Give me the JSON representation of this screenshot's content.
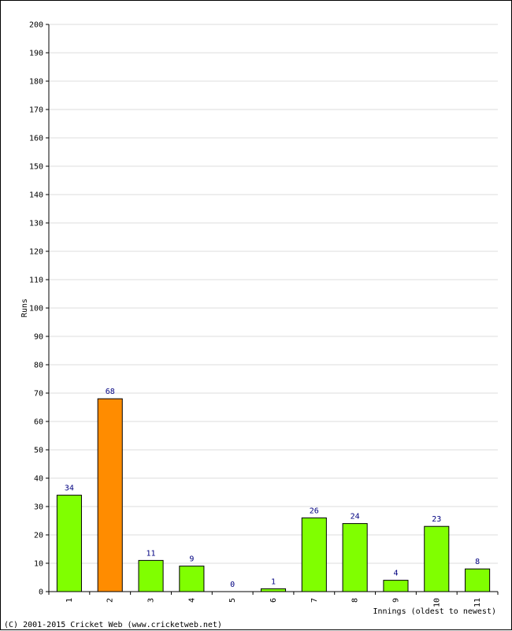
{
  "chart_data": {
    "type": "bar",
    "title": "",
    "xlabel": "Innings (oldest to newest)",
    "ylabel": "Runs",
    "ylim": [
      0,
      200
    ],
    "ytick_step": 10,
    "grid": true,
    "categories": [
      "1",
      "2",
      "3",
      "4",
      "5",
      "6",
      "7",
      "8",
      "9",
      "10",
      "11"
    ],
    "values": [
      34,
      68,
      11,
      9,
      0,
      1,
      26,
      24,
      4,
      23,
      8
    ],
    "data_labels": [
      "34",
      "68",
      "11",
      "9",
      "0",
      "1",
      "26",
      "24",
      "4",
      "23",
      "8"
    ],
    "highlight_index": 1,
    "colors": {
      "bar": "#80ff00",
      "highlight": "#ff8c00",
      "label": "#000080",
      "grid": "#dddddd"
    }
  },
  "footer": {
    "copyright": "(C) 2001-2015 Cricket Web (www.cricketweb.net)"
  }
}
